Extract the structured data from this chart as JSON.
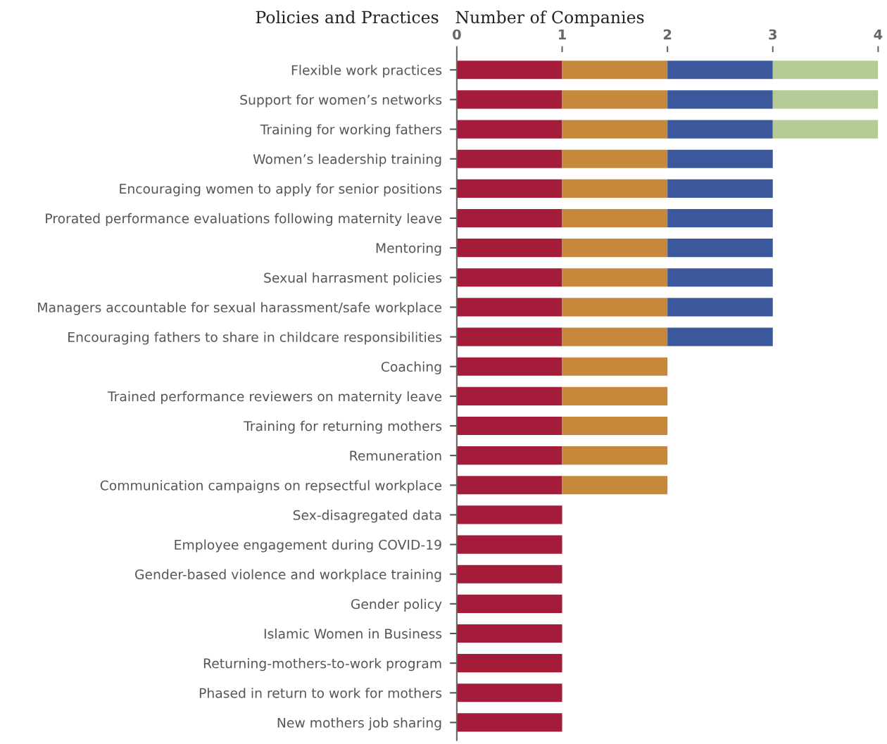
{
  "chart_data": {
    "type": "bar",
    "orientation": "horizontal",
    "stacked": true,
    "ylabel": "Policies and Practices",
    "xlabel": "Number of Companies",
    "categories": [
      "Flexible work practices",
      "Support for women’s networks",
      "Training for working fathers",
      "Women’s leadership training",
      "Encouraging women to apply for senior positions",
      "Prorated performance evaluations following maternity leave",
      "Mentoring",
      "Sexual harrasment policies",
      "Managers accountable for sexual harassment/safe workplace",
      "Encouraging fathers to share in childcare responsibilities",
      "Coaching",
      "Trained performance reviewers on maternity leave",
      "Training for returning mothers",
      "Remuneration",
      "Communication campaigns on repsectful workplace",
      "Sex-disagregated data",
      "Employee engagement during COVID-19",
      "Gender-based violence and workplace training",
      "Gender policy",
      "Islamic Women in Business",
      "Returning-mothers-to-work program",
      "Phased in return to work for mothers",
      "New mothers job sharing"
    ],
    "series": [
      {
        "color": "#a51c3a",
        "values": [
          1,
          1,
          1,
          1,
          1,
          1,
          1,
          1,
          1,
          1,
          1,
          1,
          1,
          1,
          1,
          1,
          1,
          1,
          1,
          1,
          1,
          1,
          1
        ]
      },
      {
        "color": "#c6883a",
        "values": [
          1,
          1,
          1,
          1,
          1,
          1,
          1,
          1,
          1,
          1,
          1,
          1,
          1,
          1,
          1,
          null,
          null,
          null,
          null,
          null,
          null,
          null,
          null
        ]
      },
      {
        "color": "#3c589d",
        "values": [
          1,
          1,
          1,
          1,
          1,
          1,
          1,
          1,
          1,
          1,
          null,
          null,
          null,
          null,
          null,
          null,
          null,
          null,
          null,
          null,
          null,
          null,
          null
        ]
      },
      {
        "color": "#b5cb95",
        "values": [
          1,
          1,
          1,
          null,
          null,
          null,
          null,
          null,
          null,
          null,
          null,
          null,
          null,
          null,
          null,
          null,
          null,
          null,
          null,
          null,
          null,
          null,
          null
        ]
      }
    ],
    "xlim": [
      0,
      4
    ],
    "xticks": [
      0,
      1,
      2,
      3,
      4
    ],
    "grid": false,
    "legend": false
  }
}
